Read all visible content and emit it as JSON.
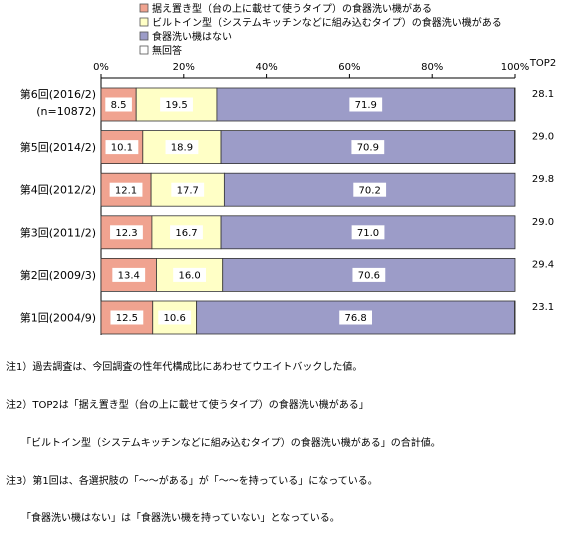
{
  "chart_data": {
    "type": "bar",
    "orientation": "horizontal",
    "stacked": true,
    "xlim": [
      0,
      100
    ],
    "x_ticks": [
      "0%",
      "20%",
      "40%",
      "60%",
      "80%",
      "100%"
    ],
    "categories": [
      [
        "第6回(2016/2)",
        "(n=10872)"
      ],
      [
        "第5回(2014/2)"
      ],
      [
        "第4回(2012/2)"
      ],
      [
        "第3回(2011/2)"
      ],
      [
        "第2回(2009/3)"
      ],
      [
        "第1回(2004/9)"
      ]
    ],
    "series": [
      {
        "name": "据え置き型（台の上に載せて使うタイプ）の食器洗い機がある",
        "color": "#f0a390",
        "values": [
          8.5,
          10.1,
          12.1,
          12.3,
          13.4,
          12.5
        ]
      },
      {
        "name": "ビルトイン型（システムキッチンなどに組み込むタイプ）の食器洗い機がある",
        "color": "#ffffc6",
        "values": [
          19.5,
          18.9,
          17.7,
          16.7,
          16.0,
          10.6
        ]
      },
      {
        "name": "食器洗い機はない",
        "color": "#9c9cc8",
        "values": [
          71.9,
          70.9,
          70.2,
          71.0,
          70.6,
          76.8
        ]
      },
      {
        "name": "無回答",
        "color": "#ffffff",
        "values": [
          0.1,
          0.1,
          0.0,
          0.0,
          0.0,
          0.1
        ]
      }
    ],
    "value_labels": [
      [
        "8.5",
        "19.5",
        "71.9"
      ],
      [
        "10.1",
        "18.9",
        "70.9"
      ],
      [
        "12.1",
        "17.7",
        "70.2"
      ],
      [
        "12.3",
        "16.7",
        "71.0"
      ],
      [
        "13.4",
        "16.0",
        "70.6"
      ],
      [
        "12.5",
        "10.6",
        "76.8"
      ]
    ],
    "top2_header": "TOP2",
    "top2": [
      "28.1",
      "29.0",
      "29.8",
      "29.0",
      "29.4",
      "23.1"
    ],
    "legend_placement": "top-left",
    "grid": false
  },
  "notes": [
    "注1）過去調査は、今回調査の性年代構成比にあわせてウエイトバックした値。",
    "注2）TOP2は「据え置き型（台の上に載せて使うタイプ）の食器洗い機がある」",
    "　　「ビルトイン型（システムキッチンなどに組み込むタイプ）の食器洗い機がある」の合計値。",
    "注3）第1回は、各選択肢の「～～がある」が「～～を持っている」になっている。",
    "　　「食器洗い機はない」は「食器洗い機を持っていない」となっている。"
  ]
}
